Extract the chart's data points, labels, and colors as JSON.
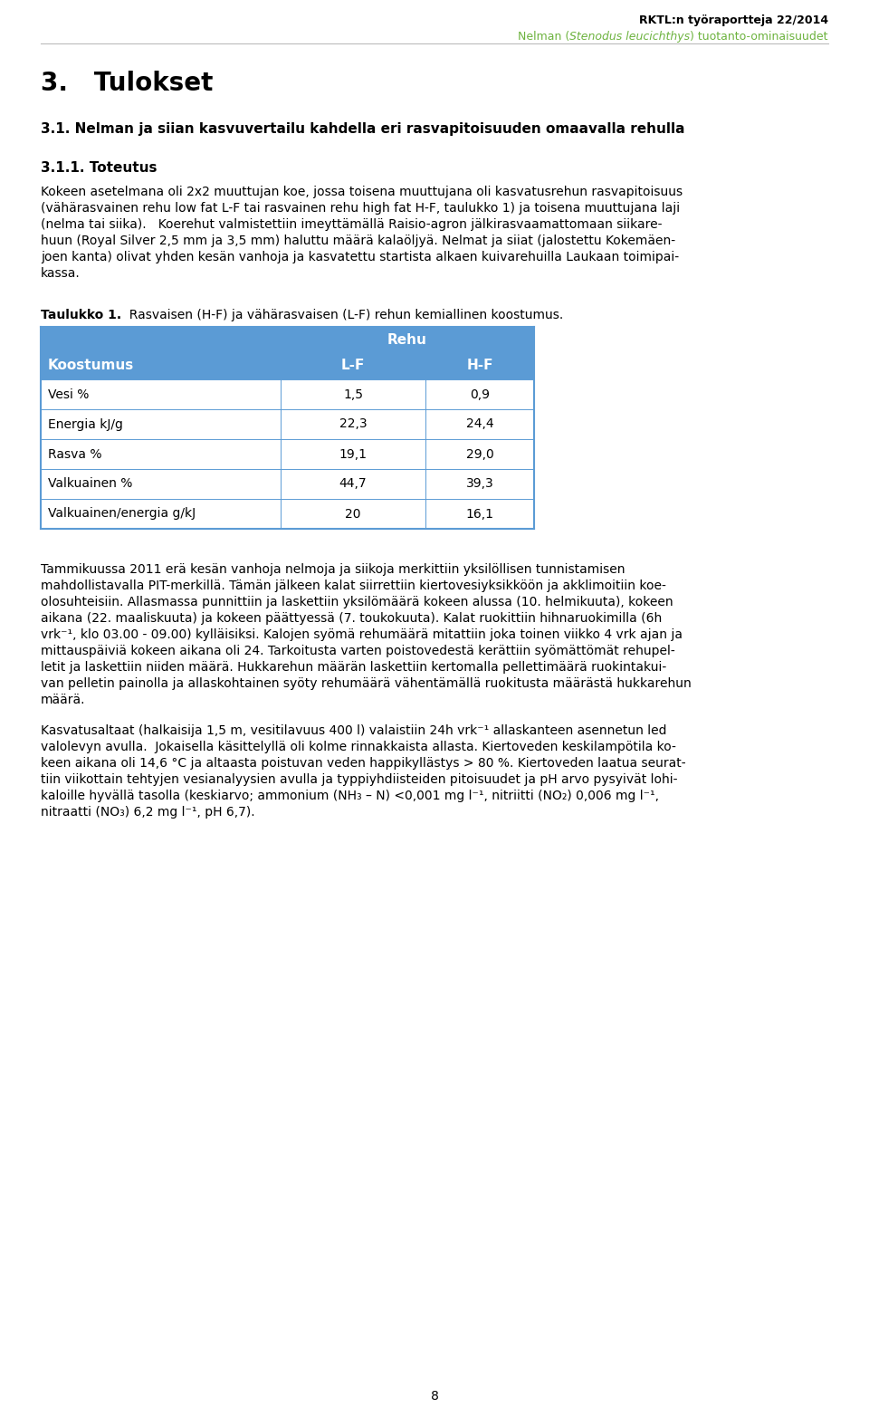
{
  "header_line1": "RKTL:n työraportteja 22/2014",
  "header_green": "#6db33f",
  "header_line2_prefix": "Nelman (",
  "header_line2_italic": "Stenodus leucichthys",
  "header_line2_suffix": ") tuotanto-ominaisuudet",
  "section_title": "3.   Tulokset",
  "subsection": "3.1. Nelman ja siian kasvuvertailu kahdella eri rasvapitoisuuden omaavalla rehulla",
  "sub_subsection": "3.1.1. Toteutus",
  "body_para1_lines": [
    "Kokeen asetelmana oli 2x2 muuttujan koe, jossa toisena muuttujana oli kasvatusrehun rasvapitoisuus",
    "(vähärasvainen rehu low fat L-F tai rasvainen rehu high fat H-F, taulukko 1) ja toisena muuttujana laji",
    "(nelma tai siika).   Koerehut valmistettiin imeyttämällä Raisio-agron jälkirasvaamattomaan siikare-",
    "huun (Royal Silver 2,5 mm ja 3,5 mm) haluttu määrä kalaöljyä. Nelmat ja siiat (jalostettu Kokemäen-",
    "joen kanta) olivat yhden kesän vanhoja ja kasvatettu startista alkaen kuivarehuilla Laukaan toimipai-",
    "kassa."
  ],
  "table_caption_bold": "Taulukko 1.",
  "table_caption_rest": "  Rasvaisen (H-F) ja vähärasvaisen (L-F) rehun kemiallinen koostumus.",
  "table_header_bg": "#5b9bd5",
  "table_header_row0": "Rehu",
  "table_col0_header": "Koostumus",
  "table_col1_header": "L-F",
  "table_col2_header": "H-F",
  "table_rows": [
    [
      "Vesi %",
      "1,5",
      "0,9"
    ],
    [
      "Energia kJ/g",
      "22,3",
      "24,4"
    ],
    [
      "Rasva %",
      "19,1",
      "29,0"
    ],
    [
      "Valkuainen %",
      "44,7",
      "39,3"
    ],
    [
      "Valkuainen/energia g/kJ",
      "20",
      "16,1"
    ]
  ],
  "body_para2_lines": [
    "Tammikuussa 2011 erä kesän vanhoja nelmoja ja siikoja merkittiin yksilöllisen tunnistamisen",
    "mahdollistavalla PIT-merkillä. Tämän jälkeen kalat siirrettiin kiertovesiyksikköön ja akklimoitiin koe-",
    "olosuhteisiin. Allasmassa punnittiin ja laskettiin yksilömäärä kokeen alussa (10. helmikuuta), kokeen",
    "aikana (22. maaliskuuta) ja kokeen päättyessä (7. toukokuuta). Kalat ruokittiin hihnaruokimilla (6h",
    "vrk⁻¹, klo 03.00 - 09.00) kylläisiksi. Kalojen syömä rehumäärä mitattiin joka toinen viikko 4 vrk ajan ja",
    "mittauspäiviä kokeen aikana oli 24. Tarkoitusta varten poistovedestä kerättiin syömättömät rehupel-",
    "letit ja laskettiin niiden määrä. Hukkarehun määrän laskettiin kertomalla pellettimäärä ruokintakui-",
    "van pelletin painolla ja allaskohtainen syöty rehumäärä vähentämällä ruokitusta määrästä hukkarehun",
    "määrä."
  ],
  "body_para3_lines": [
    "Kasvatusaltaat (halkaisija 1,5 m, vesitilavuus 400 l) valaistiin 24h vrk⁻¹ allaskanteen asennetun led",
    "valolevyn avulla.  Jokaisella käsittelyllä oli kolme rinnakkaista allasta. Kiertoveden keskilampötila ko-",
    "keen aikana oli 14,6 °C ja altaasta poistuvan veden happikyllästys > 80 %. Kiertoveden laatua seurat-",
    "tiin viikottain tehtyjen vesianalyysien avulla ja typpiyhdiisteiden pitoisuudet ja pH arvo pysyivät lohi-",
    "kaloille hyvällä tasolla (keskiarvo; ammonium (NH₃ – N) <0,001 mg l⁻¹, nitriitti (NO₂) 0,006 mg l⁻¹,",
    "nitraatti (NO₃) 6,2 mg l⁻¹, pH 6,7)."
  ],
  "page_number": "8",
  "bg_color": "#ffffff",
  "text_color": "#000000"
}
